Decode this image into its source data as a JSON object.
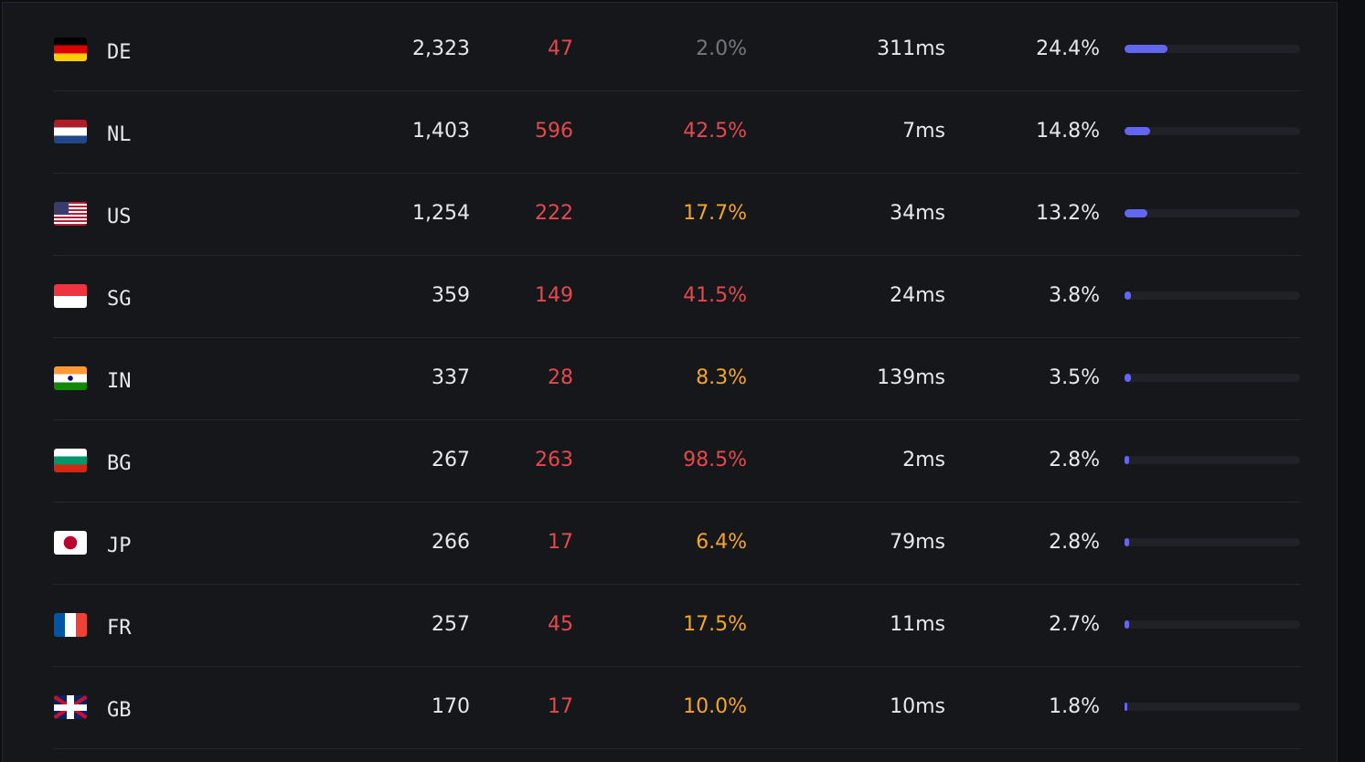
{
  "table": {
    "rows": [
      {
        "code": "DE",
        "visitors": "2,323",
        "errors": "47",
        "error_rate": "2.0%",
        "rate_color": "#76767c",
        "latency": "311ms",
        "share": "24.4%"
      },
      {
        "code": "NL",
        "visitors": "1,403",
        "errors": "596",
        "error_rate": "42.5%",
        "rate_color": "#e5484d",
        "latency": "7ms",
        "share": "14.8%"
      },
      {
        "code": "US",
        "visitors": "1,254",
        "errors": "222",
        "error_rate": "17.7%",
        "rate_color": "#f5a524",
        "latency": "34ms",
        "share": "13.2%"
      },
      {
        "code": "SG",
        "visitors": "359",
        "errors": "149",
        "error_rate": "41.5%",
        "rate_color": "#e5484d",
        "latency": "24ms",
        "share": "3.8%"
      },
      {
        "code": "IN",
        "visitors": "337",
        "errors": "28",
        "error_rate": "8.3%",
        "rate_color": "#f5a524",
        "latency": "139ms",
        "share": "3.5%"
      },
      {
        "code": "BG",
        "visitors": "267",
        "errors": "263",
        "error_rate": "98.5%",
        "rate_color": "#e5484d",
        "latency": "2ms",
        "share": "2.8%"
      },
      {
        "code": "JP",
        "visitors": "266",
        "errors": "17",
        "error_rate": "6.4%",
        "rate_color": "#f5a524",
        "latency": "79ms",
        "share": "2.8%"
      },
      {
        "code": "FR",
        "visitors": "257",
        "errors": "45",
        "error_rate": "17.5%",
        "rate_color": "#f5a524",
        "latency": "11ms",
        "share": "2.7%"
      },
      {
        "code": "GB",
        "visitors": "170",
        "errors": "17",
        "error_rate": "10.0%",
        "rate_color": "#f5a524",
        "latency": "10ms",
        "share": "1.8%"
      }
    ],
    "error_color": "#e5484d",
    "bar_color": "#6366f1"
  }
}
